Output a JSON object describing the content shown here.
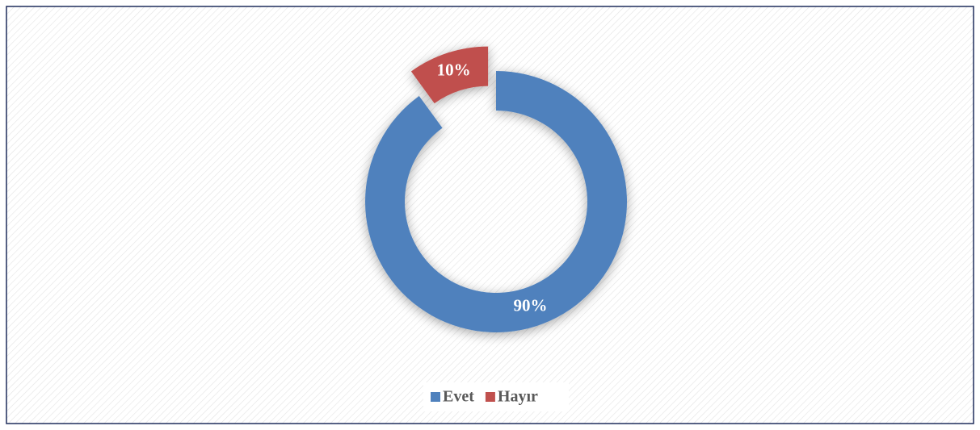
{
  "chart_data": {
    "type": "donut",
    "categories": [
      "Evet",
      "Hayır"
    ],
    "series": [
      {
        "values": [
          90,
          10
        ],
        "value_labels": [
          "90%",
          "10%"
        ],
        "colors": [
          "#4f81bd",
          "#c0504d"
        ],
        "explode": [
          false,
          true
        ]
      }
    ],
    "legend": "bottom"
  }
}
